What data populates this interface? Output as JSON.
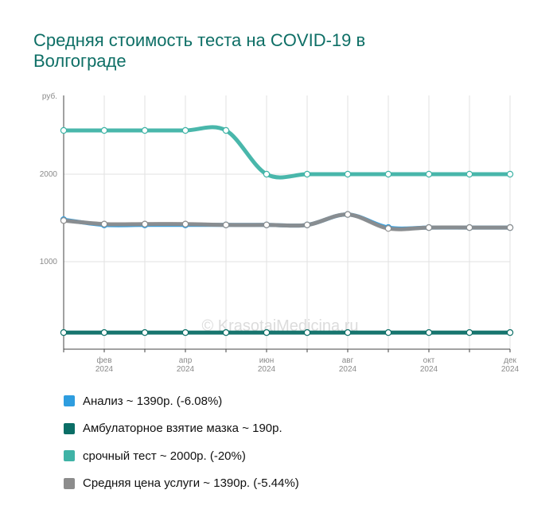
{
  "chart_data": {
    "type": "line",
    "title": "Средняя стоимость теста на COVID-19 в Волгограде",
    "ylabel": "руб.",
    "ylim": [
      0,
      2900
    ],
    "y_ticks": [
      1000,
      2000
    ],
    "y_tick_labels": [
      "1000",
      "2000"
    ],
    "x": [
      "2024-01",
      "2024-02",
      "2024-03",
      "2024-04",
      "2024-05",
      "2024-06",
      "2024-07",
      "2024-08",
      "2024-09",
      "2024-10",
      "2024-11",
      "2024-12"
    ],
    "x_tick_labels": [
      {
        "x": "2024-02",
        "month": "фев",
        "year": "2024"
      },
      {
        "x": "2024-04",
        "month": "апр",
        "year": "2024"
      },
      {
        "x": "2024-06",
        "month": "июн",
        "year": "2024"
      },
      {
        "x": "2024-08",
        "month": "авг",
        "year": "2024"
      },
      {
        "x": "2024-10",
        "month": "окт",
        "year": "2024"
      },
      {
        "x": "2024-12",
        "month": "дек",
        "year": "2024"
      }
    ],
    "grid": true,
    "legend_position": "bottom",
    "watermark": "© KrasotaiMedicina.ru",
    "series": [
      {
        "name": "Анализ",
        "legend": "Анализ ~ 1390р. (-6.08%)",
        "color": "#2e9ddf",
        "values": [
          1480,
          1420,
          1420,
          1420,
          1420,
          1420,
          1420,
          1540,
          1390,
          1390,
          1390,
          1390
        ]
      },
      {
        "name": "Амбулаторное взятие мазка",
        "legend": "Амбулаторное взятие мазка ~ 190р.",
        "color": "#0b6e66",
        "values": [
          190,
          190,
          190,
          190,
          190,
          190,
          190,
          190,
          190,
          190,
          190,
          190
        ]
      },
      {
        "name": "срочный тест",
        "legend": "срочный тест ~ 2000р. (-20%)",
        "color": "#3fb3a6",
        "values": [
          2500,
          2500,
          2500,
          2500,
          2500,
          2000,
          2000,
          2000,
          2000,
          2000,
          2000,
          2000
        ]
      },
      {
        "name": "Средняя цена услуги",
        "legend": "Средняя цена услуги ~ 1390р. (-5.44%)",
        "color": "#8c8c8c",
        "values": [
          1470,
          1430,
          1430,
          1430,
          1420,
          1420,
          1420,
          1540,
          1380,
          1390,
          1390,
          1390
        ]
      }
    ]
  }
}
